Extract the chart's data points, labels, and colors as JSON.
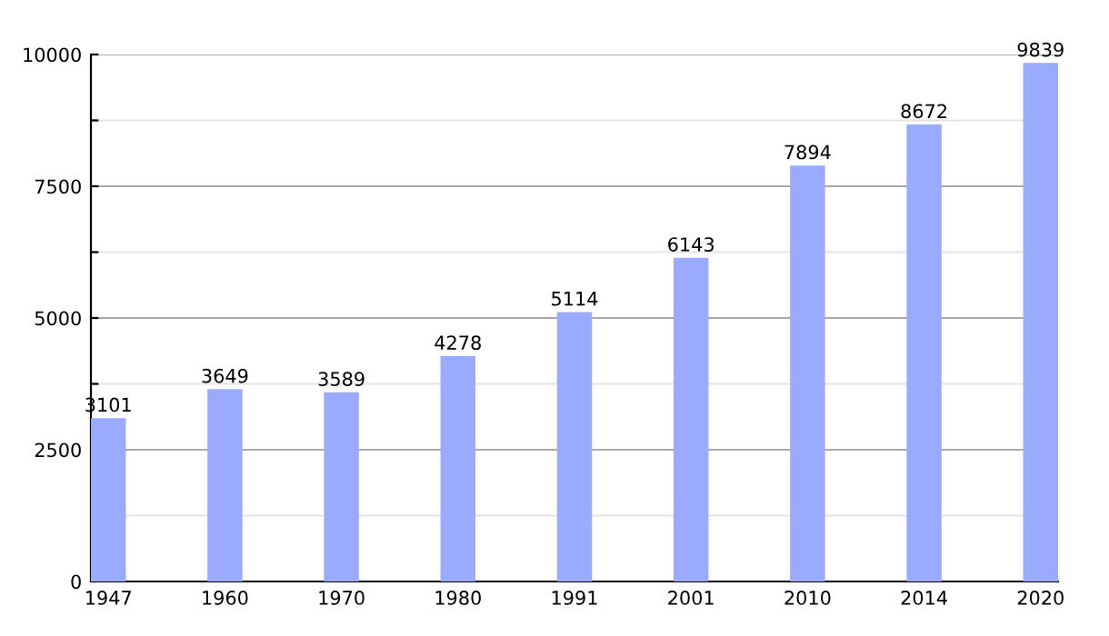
{
  "chart_data": {
    "type": "bar",
    "categories": [
      "1947",
      "1960",
      "1970",
      "1980",
      "1991",
      "2001",
      "2010",
      "2014",
      "2020"
    ],
    "values": [
      3101,
      3649,
      3589,
      4278,
      5114,
      6143,
      7894,
      8672,
      9839
    ],
    "color": "#99aaff",
    "ylim": [
      0,
      10000
    ],
    "yticks": [
      0,
      {
        "value": 1250,
        "label": null
      },
      2500,
      {
        "value": 3750,
        "label": null
      },
      5000,
      {
        "value": 6250,
        "label": null
      },
      7500,
      {
        "value": 8750,
        "label": null
      },
      10000
    ],
    "grid": "y",
    "data_labels": true
  }
}
